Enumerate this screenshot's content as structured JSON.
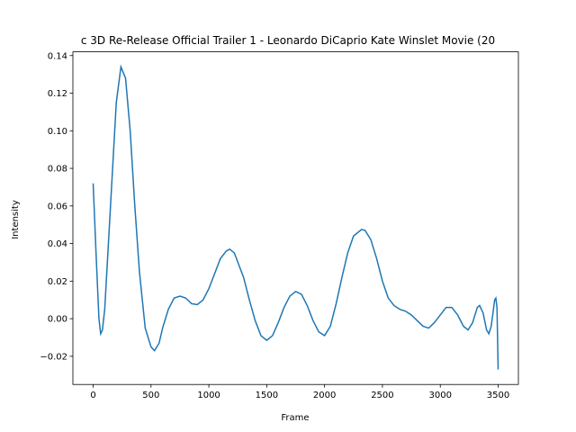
{
  "chart_data": {
    "type": "line",
    "title": "c 3D Re-Release Official Trailer 1 - Leonardo DiCaprio Kate Winslet Movie (20",
    "xlabel": "Frame",
    "ylabel": "Intensity",
    "x": [
      0,
      25,
      50,
      65,
      80,
      100,
      150,
      200,
      240,
      280,
      320,
      360,
      400,
      450,
      500,
      530,
      570,
      600,
      650,
      700,
      750,
      800,
      850,
      900,
      950,
      1000,
      1050,
      1100,
      1150,
      1180,
      1220,
      1300,
      1350,
      1400,
      1450,
      1500,
      1550,
      1600,
      1650,
      1700,
      1750,
      1800,
      1850,
      1900,
      1950,
      2000,
      2050,
      2100,
      2150,
      2200,
      2250,
      2320,
      2350,
      2400,
      2450,
      2500,
      2550,
      2600,
      2650,
      2700,
      2750,
      2800,
      2850,
      2900,
      2950,
      3000,
      3050,
      3100,
      3150,
      3200,
      3240,
      3280,
      3320,
      3340,
      3370,
      3400,
      3420,
      3440,
      3470,
      3480,
      3490,
      3500
    ],
    "series": [
      {
        "color": "#1f77b4",
        "values": [
          0.072,
          0.035,
          0.0,
          -0.008,
          -0.006,
          0.005,
          0.06,
          0.115,
          0.134,
          0.128,
          0.1,
          0.06,
          0.025,
          -0.005,
          -0.015,
          -0.017,
          -0.013,
          -0.005,
          0.005,
          0.011,
          0.012,
          0.011,
          0.008,
          0.0075,
          0.01,
          0.016,
          0.024,
          0.032,
          0.036,
          0.037,
          0.035,
          0.022,
          0.01,
          -0.001,
          -0.009,
          -0.0115,
          -0.009,
          -0.002,
          0.006,
          0.012,
          0.0145,
          0.013,
          0.007,
          -0.001,
          -0.007,
          -0.009,
          -0.004,
          0.008,
          0.022,
          0.035,
          0.044,
          0.0475,
          0.047,
          0.042,
          0.032,
          0.02,
          0.011,
          0.007,
          0.005,
          0.004,
          0.002,
          -0.001,
          -0.004,
          -0.005,
          -0.002,
          0.002,
          0.006,
          0.006,
          0.002,
          -0.004,
          -0.006,
          -0.002,
          0.006,
          0.007,
          0.003,
          -0.006,
          -0.008,
          -0.004,
          0.01,
          0.011,
          0.006,
          -0.027
        ]
      }
    ],
    "xlim": [
      -175,
      3675
    ],
    "ylim": [
      -0.035,
      0.142
    ],
    "xticks": [
      0,
      500,
      1000,
      1500,
      2000,
      2500,
      3000,
      3500
    ],
    "yticks": [
      {
        "value": -0.02,
        "label": "−0.02"
      },
      {
        "value": 0,
        "label": "0.00"
      },
      {
        "value": 0.02,
        "label": "0.02"
      },
      {
        "value": 0.04,
        "label": "0.04"
      },
      {
        "value": 0.06,
        "label": "0.06"
      },
      {
        "value": 0.08,
        "label": "0.08"
      },
      {
        "value": 0.1,
        "label": "0.10"
      },
      {
        "value": 0.12,
        "label": "0.12"
      },
      {
        "value": 0.14,
        "label": "0.14"
      }
    ]
  }
}
